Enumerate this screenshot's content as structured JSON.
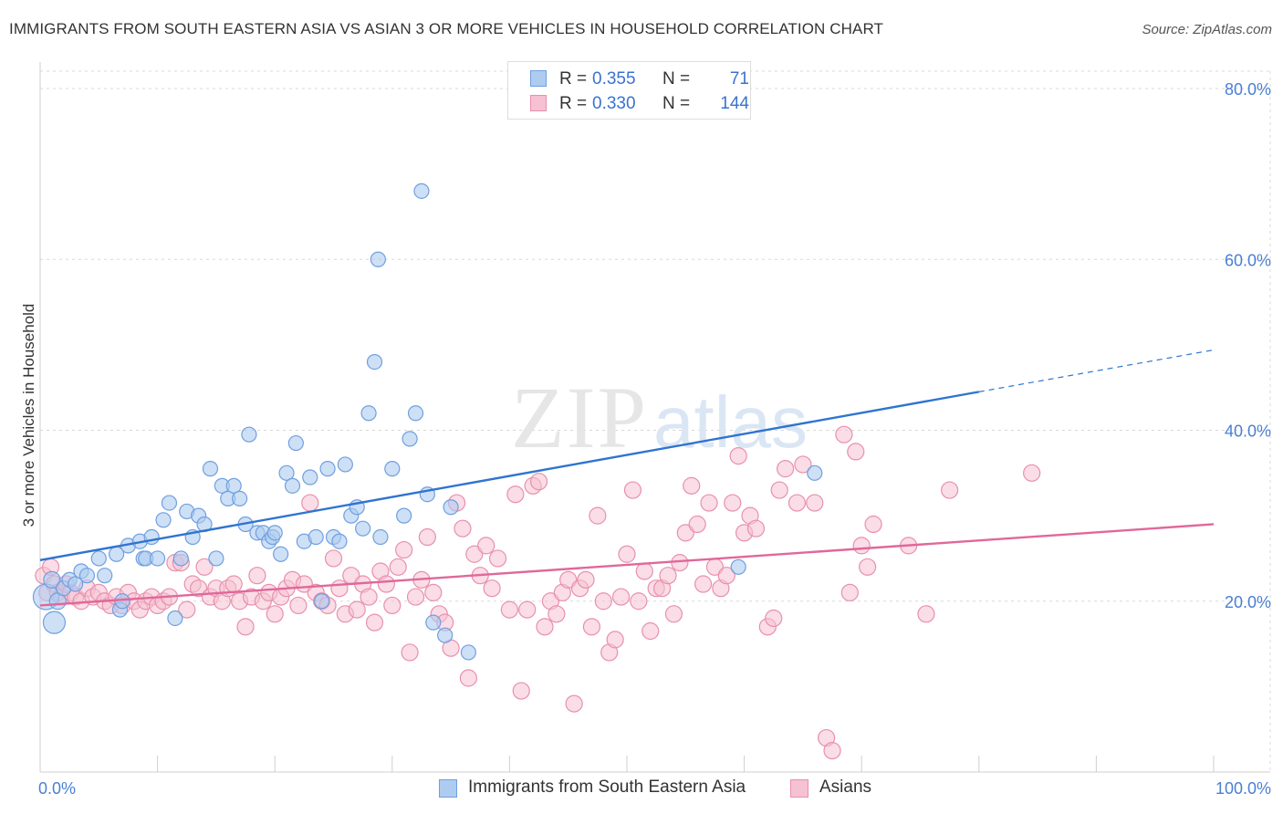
{
  "title": "IMMIGRANTS FROM SOUTH EASTERN ASIA VS ASIAN 3 OR MORE VEHICLES IN HOUSEHOLD CORRELATION CHART",
  "source": "Source: ZipAtlas.com",
  "watermark": {
    "zip": "ZIP",
    "atlas": "atlas"
  },
  "legend": {
    "rows": [
      {
        "r_label": "R =",
        "r_value": "0.355",
        "n_label": "N =",
        "n_value": "71"
      },
      {
        "r_label": "R =",
        "r_value": "0.330",
        "n_label": "N =",
        "n_value": "144"
      }
    ]
  },
  "bottom_legend": {
    "series1": "Immigrants from South Eastern Asia",
    "series2": "Asians"
  },
  "colors": {
    "series1_fill": "#aecbf0",
    "series1_stroke": "#6f9fe0",
    "series1_line": "#2f74d0",
    "series2_fill": "#f6c1d2",
    "series2_stroke": "#e890ac",
    "series2_line": "#e0689a",
    "tick_text": "#4a7fd4",
    "grid": "#d8d8d8"
  },
  "chart_data": {
    "type": "scatter",
    "title": "IMMIGRANTS FROM SOUTH EASTERN ASIA VS ASIAN 3 OR MORE VEHICLES IN HOUSEHOLD CORRELATION CHART",
    "xlabel": "",
    "ylabel": "3 or more Vehicles in Household",
    "xlim": [
      0,
      100
    ],
    "ylim": [
      0,
      82
    ],
    "x_tick_labels": [
      "0.0%",
      "100.0%"
    ],
    "y_ticks": [
      20,
      40,
      60,
      80
    ],
    "y_tick_labels": [
      "20.0%",
      "40.0%",
      "60.0%",
      "80.0%"
    ],
    "grid": true,
    "legend_position": "top-center",
    "series": [
      {
        "name": "Immigrants from South Eastern Asia",
        "R": 0.355,
        "N": 71,
        "trend": {
          "x0": 0,
          "y0": 24.8,
          "x1": 80,
          "y1": 44.5,
          "dashed_to_x": 100,
          "dashed_to_y": 49.4
        },
        "points": [
          [
            0.5,
            20.5,
            14
          ],
          [
            1.0,
            22.5,
            9
          ],
          [
            1.2,
            17.5,
            12
          ],
          [
            1.5,
            20.0,
            9
          ],
          [
            2.0,
            21.5,
            8
          ],
          [
            2.5,
            22.5,
            8
          ],
          [
            3.0,
            22.0,
            8
          ],
          [
            3.5,
            23.5,
            8
          ],
          [
            4.0,
            23.0,
            8
          ],
          [
            5.0,
            25.0,
            8
          ],
          [
            5.5,
            23.0,
            8
          ],
          [
            6.5,
            25.5,
            8
          ],
          [
            6.8,
            19.0,
            8
          ],
          [
            7.0,
            20.0,
            8
          ],
          [
            7.5,
            26.5,
            8
          ],
          [
            8.5,
            27.0,
            8
          ],
          [
            8.8,
            25.0,
            8
          ],
          [
            9.0,
            25.0,
            8
          ],
          [
            9.5,
            27.5,
            8
          ],
          [
            10.0,
            25.0,
            8
          ],
          [
            10.5,
            29.5,
            8
          ],
          [
            11.0,
            31.5,
            8
          ],
          [
            11.5,
            18.0,
            8
          ],
          [
            12.0,
            25.0,
            8
          ],
          [
            12.5,
            30.5,
            8
          ],
          [
            13.0,
            27.5,
            8
          ],
          [
            13.5,
            30.0,
            8
          ],
          [
            14.0,
            29.0,
            8
          ],
          [
            14.5,
            35.5,
            8
          ],
          [
            15.0,
            25.0,
            8
          ],
          [
            15.5,
            33.5,
            8
          ],
          [
            16.0,
            32.0,
            8
          ],
          [
            16.5,
            33.5,
            8
          ],
          [
            17.0,
            32.0,
            8
          ],
          [
            17.5,
            29.0,
            8
          ],
          [
            17.8,
            39.5,
            8
          ],
          [
            18.5,
            28.0,
            8
          ],
          [
            19.0,
            28.0,
            8
          ],
          [
            19.5,
            27.0,
            8
          ],
          [
            19.8,
            27.5,
            8
          ],
          [
            20.0,
            28.0,
            8
          ],
          [
            20.5,
            25.5,
            8
          ],
          [
            21.0,
            35.0,
            8
          ],
          [
            21.5,
            33.5,
            8
          ],
          [
            21.8,
            38.5,
            8
          ],
          [
            22.5,
            27.0,
            8
          ],
          [
            23.0,
            34.5,
            8
          ],
          [
            23.5,
            27.5,
            8
          ],
          [
            24.0,
            20.0,
            8
          ],
          [
            24.5,
            35.5,
            8
          ],
          [
            25.0,
            27.5,
            8
          ],
          [
            25.5,
            27.0,
            8
          ],
          [
            26.0,
            36.0,
            8
          ],
          [
            26.5,
            30.0,
            8
          ],
          [
            27.0,
            31.0,
            8
          ],
          [
            27.5,
            28.5,
            8
          ],
          [
            28.0,
            42.0,
            8
          ],
          [
            28.5,
            48.0,
            8
          ],
          [
            28.8,
            60.0,
            8
          ],
          [
            29.0,
            27.5,
            8
          ],
          [
            30.0,
            35.5,
            8
          ],
          [
            31.0,
            30.0,
            8
          ],
          [
            31.5,
            39.0,
            8
          ],
          [
            32.0,
            42.0,
            8
          ],
          [
            32.5,
            68.0,
            8
          ],
          [
            33.0,
            32.5,
            8
          ],
          [
            33.5,
            17.5,
            8
          ],
          [
            34.5,
            16.0,
            8
          ],
          [
            35.0,
            31.0,
            8
          ],
          [
            36.5,
            14.0,
            8
          ],
          [
            59.5,
            24.0,
            8
          ],
          [
            66.0,
            35.0,
            8
          ]
        ]
      },
      {
        "name": "Asians",
        "R": 0.33,
        "N": 144,
        "trend": {
          "x0": 0,
          "y0": 19.5,
          "x1": 100,
          "y1": 29.0
        },
        "points": [
          [
            0.3,
            23.0,
            9
          ],
          [
            0.6,
            21.0,
            9
          ],
          [
            0.9,
            24.0,
            9
          ],
          [
            1.2,
            22.0,
            9
          ],
          [
            1.5,
            21.0,
            9
          ],
          [
            1.8,
            20.5,
            9
          ],
          [
            2.2,
            22.0,
            9
          ],
          [
            2.6,
            21.0,
            9
          ],
          [
            3.0,
            20.5,
            9
          ],
          [
            3.5,
            20.0,
            9
          ],
          [
            4.0,
            21.5,
            9
          ],
          [
            4.5,
            20.5,
            9
          ],
          [
            5.0,
            21.0,
            9
          ],
          [
            5.5,
            20.0,
            9
          ],
          [
            6.0,
            19.5,
            9
          ],
          [
            6.5,
            20.5,
            9
          ],
          [
            7.0,
            19.5,
            9
          ],
          [
            7.5,
            21.0,
            9
          ],
          [
            8.0,
            20.0,
            9
          ],
          [
            8.5,
            19.0,
            9
          ],
          [
            9.0,
            20.0,
            9
          ],
          [
            9.5,
            20.5,
            9
          ],
          [
            10.0,
            19.5,
            9
          ],
          [
            10.5,
            20.0,
            9
          ],
          [
            11.0,
            20.5,
            9
          ],
          [
            11.5,
            24.5,
            9
          ],
          [
            12.0,
            24.5,
            9
          ],
          [
            12.5,
            19.0,
            9
          ],
          [
            13.0,
            22.0,
            9
          ],
          [
            13.5,
            21.5,
            9
          ],
          [
            14.0,
            24.0,
            9
          ],
          [
            14.5,
            20.5,
            9
          ],
          [
            15.0,
            21.5,
            9
          ],
          [
            15.5,
            20.0,
            9
          ],
          [
            16.0,
            21.5,
            9
          ],
          [
            16.5,
            22.0,
            9
          ],
          [
            17.0,
            20.0,
            9
          ],
          [
            17.5,
            17.0,
            9
          ],
          [
            18.0,
            20.5,
            9
          ],
          [
            18.5,
            23.0,
            9
          ],
          [
            19.0,
            20.0,
            9
          ],
          [
            19.5,
            21.0,
            9
          ],
          [
            20.0,
            18.5,
            9
          ],
          [
            20.5,
            20.5,
            9
          ],
          [
            21.0,
            21.5,
            9
          ],
          [
            21.5,
            22.5,
            9
          ],
          [
            22.0,
            19.5,
            9
          ],
          [
            22.5,
            22.0,
            9
          ],
          [
            23.0,
            31.5,
            9
          ],
          [
            23.5,
            21.0,
            9
          ],
          [
            24.0,
            20.0,
            9
          ],
          [
            24.5,
            19.5,
            9
          ],
          [
            25.0,
            25.0,
            9
          ],
          [
            25.5,
            21.5,
            9
          ],
          [
            26.0,
            18.5,
            9
          ],
          [
            26.5,
            23.0,
            9
          ],
          [
            27.0,
            19.0,
            9
          ],
          [
            27.5,
            22.0,
            9
          ],
          [
            28.0,
            20.5,
            9
          ],
          [
            28.5,
            17.5,
            9
          ],
          [
            29.0,
            23.5,
            9
          ],
          [
            29.5,
            22.0,
            9
          ],
          [
            30.0,
            19.5,
            9
          ],
          [
            30.5,
            24.0,
            9
          ],
          [
            31.0,
            26.0,
            9
          ],
          [
            31.5,
            14.0,
            9
          ],
          [
            32.0,
            20.5,
            9
          ],
          [
            32.5,
            22.5,
            9
          ],
          [
            33.0,
            27.5,
            9
          ],
          [
            33.5,
            21.0,
            9
          ],
          [
            34.0,
            18.5,
            9
          ],
          [
            34.5,
            17.5,
            9
          ],
          [
            35.0,
            14.5,
            9
          ],
          [
            35.5,
            31.5,
            9
          ],
          [
            36.0,
            28.5,
            9
          ],
          [
            36.5,
            11.0,
            9
          ],
          [
            37.0,
            25.5,
            9
          ],
          [
            37.5,
            23.0,
            9
          ],
          [
            38.0,
            26.5,
            9
          ],
          [
            38.5,
            21.5,
            9
          ],
          [
            39.0,
            25.0,
            9
          ],
          [
            40.0,
            19.0,
            9
          ],
          [
            40.5,
            32.5,
            9
          ],
          [
            41.0,
            9.5,
            9
          ],
          [
            41.5,
            19.0,
            9
          ],
          [
            42.0,
            33.5,
            9
          ],
          [
            42.5,
            34.0,
            9
          ],
          [
            43.0,
            17.0,
            9
          ],
          [
            43.5,
            20.0,
            9
          ],
          [
            44.0,
            18.5,
            9
          ],
          [
            44.5,
            21.0,
            9
          ],
          [
            45.0,
            22.5,
            9
          ],
          [
            45.5,
            8.0,
            9
          ],
          [
            46.0,
            21.5,
            9
          ],
          [
            46.5,
            22.5,
            9
          ],
          [
            47.0,
            17.0,
            9
          ],
          [
            47.5,
            30.0,
            9
          ],
          [
            48.0,
            20.0,
            9
          ],
          [
            48.5,
            14.0,
            9
          ],
          [
            49.0,
            15.5,
            9
          ],
          [
            49.5,
            20.5,
            9
          ],
          [
            50.0,
            25.5,
            9
          ],
          [
            50.5,
            33.0,
            9
          ],
          [
            51.0,
            20.0,
            9
          ],
          [
            51.5,
            23.5,
            9
          ],
          [
            52.0,
            16.5,
            9
          ],
          [
            52.5,
            21.5,
            9
          ],
          [
            53.0,
            21.5,
            9
          ],
          [
            53.5,
            23.0,
            9
          ],
          [
            54.0,
            18.5,
            9
          ],
          [
            54.5,
            24.5,
            9
          ],
          [
            55.0,
            28.0,
            9
          ],
          [
            55.5,
            33.5,
            9
          ],
          [
            56.0,
            29.0,
            9
          ],
          [
            56.5,
            22.0,
            9
          ],
          [
            57.0,
            31.5,
            9
          ],
          [
            57.5,
            24.0,
            9
          ],
          [
            58.0,
            21.5,
            9
          ],
          [
            58.5,
            23.0,
            9
          ],
          [
            59.0,
            31.5,
            9
          ],
          [
            59.5,
            37.0,
            9
          ],
          [
            60.0,
            28.0,
            9
          ],
          [
            60.5,
            30.0,
            9
          ],
          [
            61.0,
            28.5,
            9
          ],
          [
            62.0,
            17.0,
            9
          ],
          [
            62.5,
            18.0,
            9
          ],
          [
            63.0,
            33.0,
            9
          ],
          [
            63.5,
            35.5,
            9
          ],
          [
            64.5,
            31.5,
            9
          ],
          [
            65.0,
            36.0,
            9
          ],
          [
            66.0,
            31.5,
            9
          ],
          [
            67.0,
            4.0,
            9
          ],
          [
            67.5,
            2.5,
            9
          ],
          [
            68.5,
            39.5,
            9
          ],
          [
            69.0,
            21.0,
            9
          ],
          [
            69.5,
            37.5,
            9
          ],
          [
            70.0,
            26.5,
            9
          ],
          [
            70.5,
            24.0,
            9
          ],
          [
            71.0,
            29.0,
            9
          ],
          [
            74.0,
            26.5,
            9
          ],
          [
            75.5,
            18.5,
            9
          ],
          [
            77.5,
            33.0,
            9
          ],
          [
            84.5,
            35.0,
            9
          ]
        ]
      }
    ]
  }
}
